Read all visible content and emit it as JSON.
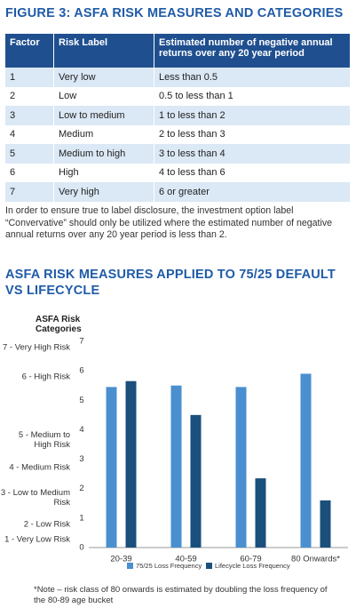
{
  "header": {
    "title": "FIGURE 3: ASFA RISK MEASURES AND CATEGORIES"
  },
  "table": {
    "header": [
      "Factor",
      "Risk Label",
      "Estimated number of negative annual returns over any 20 year period"
    ],
    "rows": [
      [
        1,
        "Very low",
        "Less than 0.5"
      ],
      [
        2,
        "Low",
        "0.5 to less than 1"
      ],
      [
        3,
        "Low to medium",
        "1 to less than 2"
      ],
      [
        4,
        "Medium",
        "2 to less than 3"
      ],
      [
        5,
        "Medium to high",
        "3 to less than 4"
      ],
      [
        6,
        "High",
        "4 to less than 6"
      ],
      [
        7,
        "Very high",
        "6 or greater"
      ]
    ]
  },
  "note": "In order to ensure true to label disclosure, the investment option label “Convervative” should only be utilized where the estimated number of negative annual returns over any 20 year period is less than 2.",
  "chart_data": {
    "type": "bar",
    "title": "ASFA RISK MEASURES APPLIED TO 75/25 DEFAULT VS LIFECYCLE",
    "y_label": "ASFA Risk Categories",
    "risk_categories": [
      "7 - Very High Risk",
      "6 - High Risk",
      "5 - Medium to High Risk",
      "4 - Medium Risk",
      "3 - Low to Medium Risk",
      "2 - Low Risk",
      "1 - Very Low Risk"
    ],
    "categories": [
      "20-39",
      "40-59",
      "60-79",
      "80 Onwards*"
    ],
    "series": [
      {
        "name": "75/25 Loss Frequency",
        "color": "#4a8fd0",
        "values": [
          5.45,
          5.5,
          5.45,
          5.9
        ]
      },
      {
        "name": "Lifecycle Loss Frequency",
        "color": "#1b4f7c",
        "values": [
          5.65,
          4.5,
          2.35,
          1.6
        ]
      }
    ],
    "ylim": [
      0,
      7
    ],
    "yticks": [
      0,
      1,
      2,
      3,
      4,
      5,
      6,
      7
    ],
    "footnote": "*Note – risk class of 80 onwards is estimated by doubling the loss frequency of the 80-89 age bucket"
  }
}
